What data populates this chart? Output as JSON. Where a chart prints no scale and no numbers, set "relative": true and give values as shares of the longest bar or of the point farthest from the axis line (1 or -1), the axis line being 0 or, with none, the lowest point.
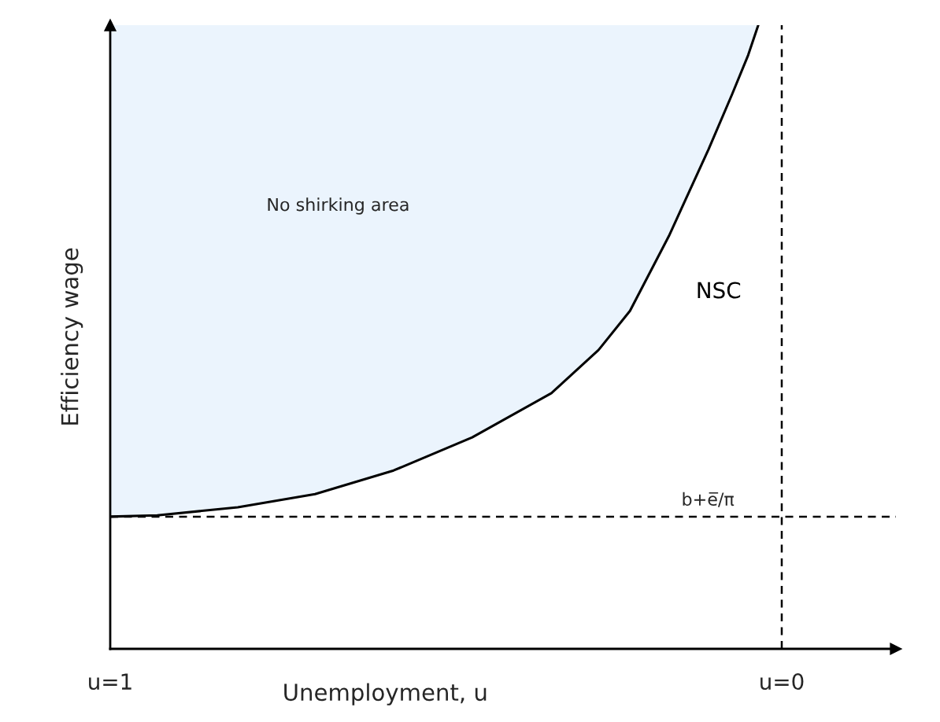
{
  "chart_data": {
    "type": "line",
    "relative": true,
    "xlabel": "Unemployment, u",
    "ylabel": "Efficiency wage",
    "x": [
      1.0,
      0.93,
      0.81,
      0.695,
      0.578,
      0.461,
      0.343,
      0.273,
      0.226,
      0.168,
      0.109,
      0.074,
      0.05,
      0.035
    ],
    "series": [
      {
        "name": "NSC",
        "color": "#000000",
        "values": [
          0.212,
          0.214,
          0.227,
          0.248,
          0.286,
          0.339,
          0.41,
          0.479,
          0.542,
          0.662,
          0.801,
          0.889,
          0.952,
          1.0
        ]
      }
    ],
    "xlim": [
      1,
      -0.17
    ],
    "xticks": [
      {
        "value": 1,
        "label": "u=1"
      },
      {
        "value": 0,
        "label": "u=0"
      }
    ],
    "ref_lines": [
      {
        "axis": "y",
        "value": 0.212,
        "label": "b+e̅/π",
        "line_style": "dashed"
      },
      {
        "axis": "x",
        "value": 0,
        "label": null,
        "line_style": "dashed"
      }
    ],
    "annotations": [
      "No shirking area"
    ],
    "grid": false,
    "legend": false
  }
}
